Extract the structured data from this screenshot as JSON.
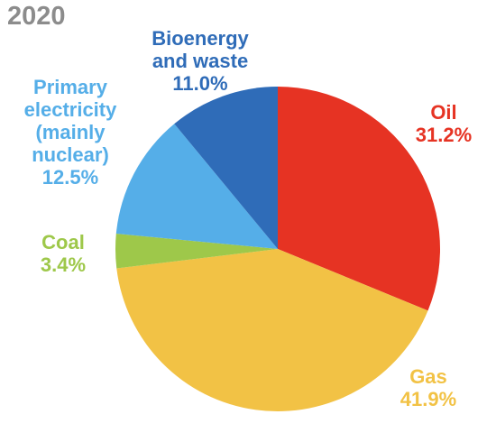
{
  "chart_data": {
    "type": "pie",
    "title": "2020",
    "slices": [
      {
        "label_lines": [
          "Oil"
        ],
        "label": "Oil",
        "value": 31.2,
        "value_label": "31.2%",
        "color": "#e63323"
      },
      {
        "label_lines": [
          "Gas"
        ],
        "label": "Gas",
        "value": 41.9,
        "value_label": "41.9%",
        "color": "#f2c245"
      },
      {
        "label_lines": [
          "Coal"
        ],
        "label": "Coal",
        "value": 3.4,
        "value_label": "3.4%",
        "color": "#9ec84a"
      },
      {
        "label_lines": [
          "Primary",
          "electricity",
          "(mainly",
          "nuclear)"
        ],
        "label": "Primary electricity (mainly nuclear)",
        "value": 12.5,
        "value_label": "12.5%",
        "color": "#55aee8"
      },
      {
        "label_lines": [
          "Bioenergy",
          "and waste"
        ],
        "label": "Bioenergy and waste",
        "value": 11.0,
        "value_label": "11.0%",
        "color": "#2f6cb8"
      }
    ],
    "start_angle": "12 o'clock",
    "direction": "clockwise",
    "legend": "none"
  }
}
